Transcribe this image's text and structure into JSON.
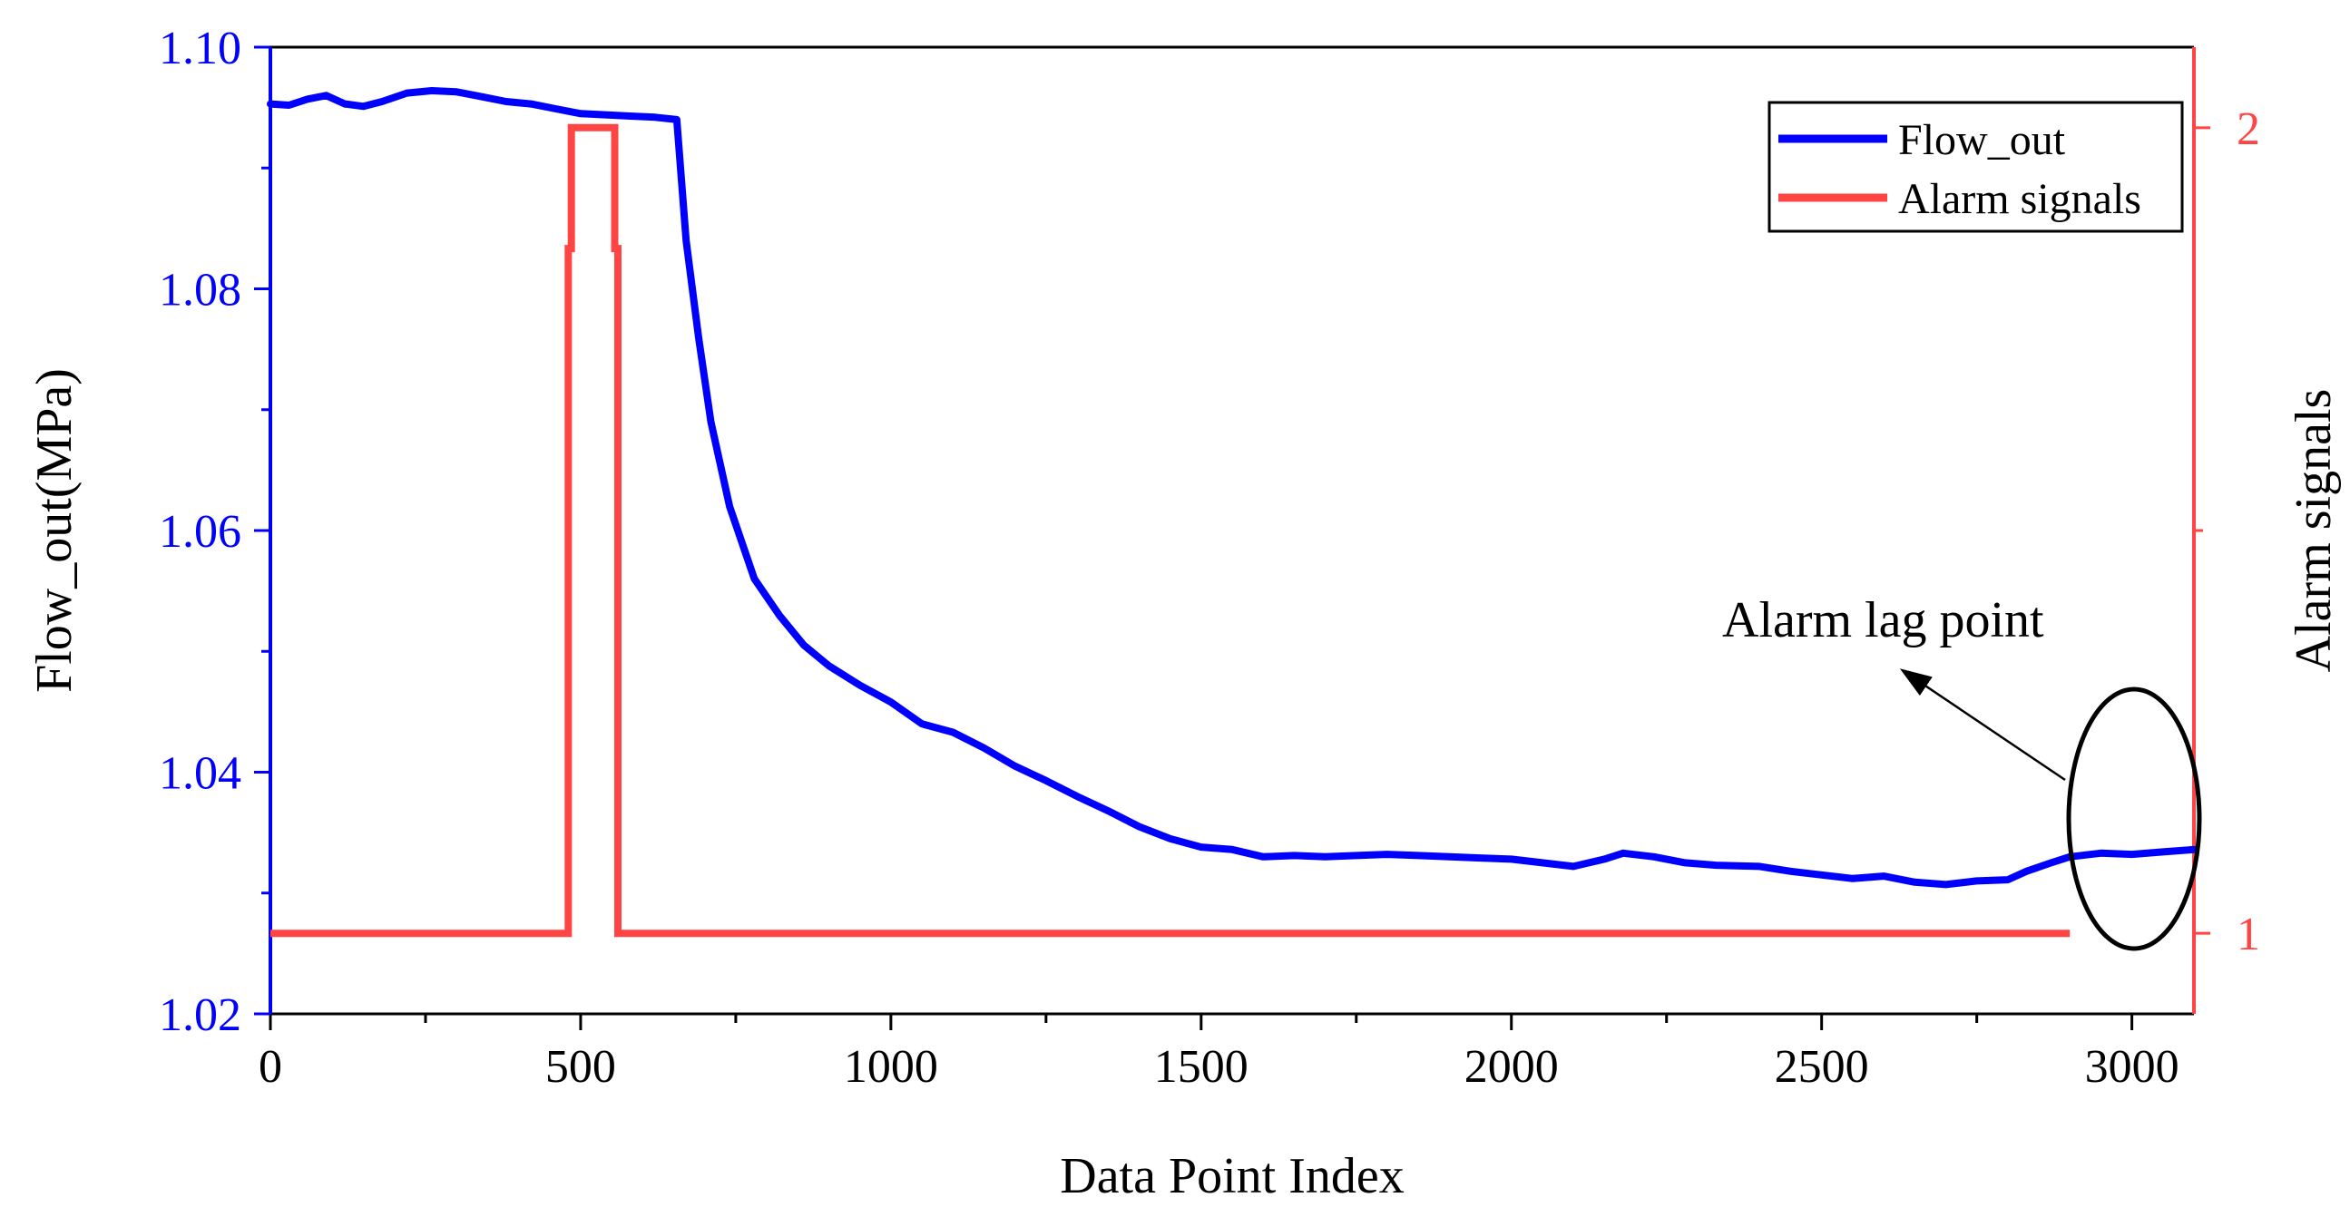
{
  "colors": {
    "left_axis": "#0000ff",
    "right_axis": "#ff4444",
    "flow_line": "#0000ff",
    "alarm_line": "#ff4444",
    "text": "#000000"
  },
  "chart_data": {
    "type": "line",
    "title": "",
    "xlabel": "Data Point Index",
    "ylabel": "Flow_out(MPa)",
    "y2label": "Alarm signals",
    "xlim": [
      0,
      3100
    ],
    "ylim": [
      1.02,
      1.1
    ],
    "y2lim": [
      0.9,
      2.1
    ],
    "xticks": [
      0,
      500,
      1000,
      1500,
      2000,
      2500,
      3000
    ],
    "xtick_labels": [
      "0",
      "500",
      "1000",
      "1500",
      "2000",
      "2500",
      "3000"
    ],
    "yticks": [
      1.02,
      1.04,
      1.06,
      1.08,
      1.1
    ],
    "ytick_labels": [
      "1.02",
      "1.04",
      "1.06",
      "1.08",
      "1.10"
    ],
    "y2ticks": [
      1,
      2
    ],
    "y2tick_labels": [
      "1",
      "2"
    ],
    "legend_position": "top-right",
    "series": [
      {
        "name": "Flow_out",
        "axis": "left",
        "x": [
          0,
          30,
          60,
          90,
          120,
          150,
          180,
          220,
          260,
          300,
          340,
          380,
          420,
          460,
          500,
          540,
          580,
          620,
          655,
          670,
          690,
          710,
          740,
          780,
          820,
          860,
          900,
          950,
          1000,
          1050,
          1100,
          1150,
          1200,
          1250,
          1300,
          1350,
          1400,
          1450,
          1500,
          1550,
          1600,
          1650,
          1700,
          1750,
          1800,
          1850,
          1900,
          1950,
          2000,
          2050,
          2100,
          2150,
          2180,
          2230,
          2280,
          2330,
          2400,
          2450,
          2500,
          2550,
          2600,
          2650,
          2700,
          2750,
          2800,
          2830,
          2870,
          2900,
          2950,
          3000,
          3050,
          3100
        ],
        "y": [
          1.0953,
          1.0952,
          1.0957,
          1.096,
          1.0953,
          1.0951,
          1.0955,
          1.0962,
          1.0964,
          1.0963,
          1.0959,
          1.0955,
          1.0953,
          1.0949,
          1.0945,
          1.0944,
          1.0943,
          1.0942,
          1.094,
          1.084,
          1.076,
          1.069,
          1.062,
          1.056,
          1.053,
          1.0505,
          1.0488,
          1.0472,
          1.0458,
          1.044,
          1.0433,
          1.042,
          1.0405,
          1.0393,
          1.038,
          1.0368,
          1.0355,
          1.0345,
          1.0338,
          1.0336,
          1.033,
          1.0331,
          1.033,
          1.0331,
          1.0332,
          1.0331,
          1.033,
          1.0329,
          1.0328,
          1.0325,
          1.0322,
          1.0328,
          1.0333,
          1.033,
          1.0325,
          1.0323,
          1.0322,
          1.0318,
          1.0315,
          1.0312,
          1.0314,
          1.0309,
          1.0307,
          1.031,
          1.0311,
          1.0318,
          1.0325,
          1.033,
          1.0333,
          1.0332,
          1.0334,
          1.0336
        ]
      },
      {
        "name": "Alarm signals",
        "axis": "right",
        "x": [
          0,
          480,
          480,
          485,
          485,
          555,
          555,
          560,
          560,
          2900
        ],
        "y": [
          1,
          1,
          1.85,
          1.85,
          2,
          2,
          1.85,
          1.85,
          1,
          1
        ]
      }
    ],
    "annotations": [
      {
        "text": "Alarm lag point",
        "target_x": 2990,
        "target_y2": 1.5
      }
    ]
  }
}
